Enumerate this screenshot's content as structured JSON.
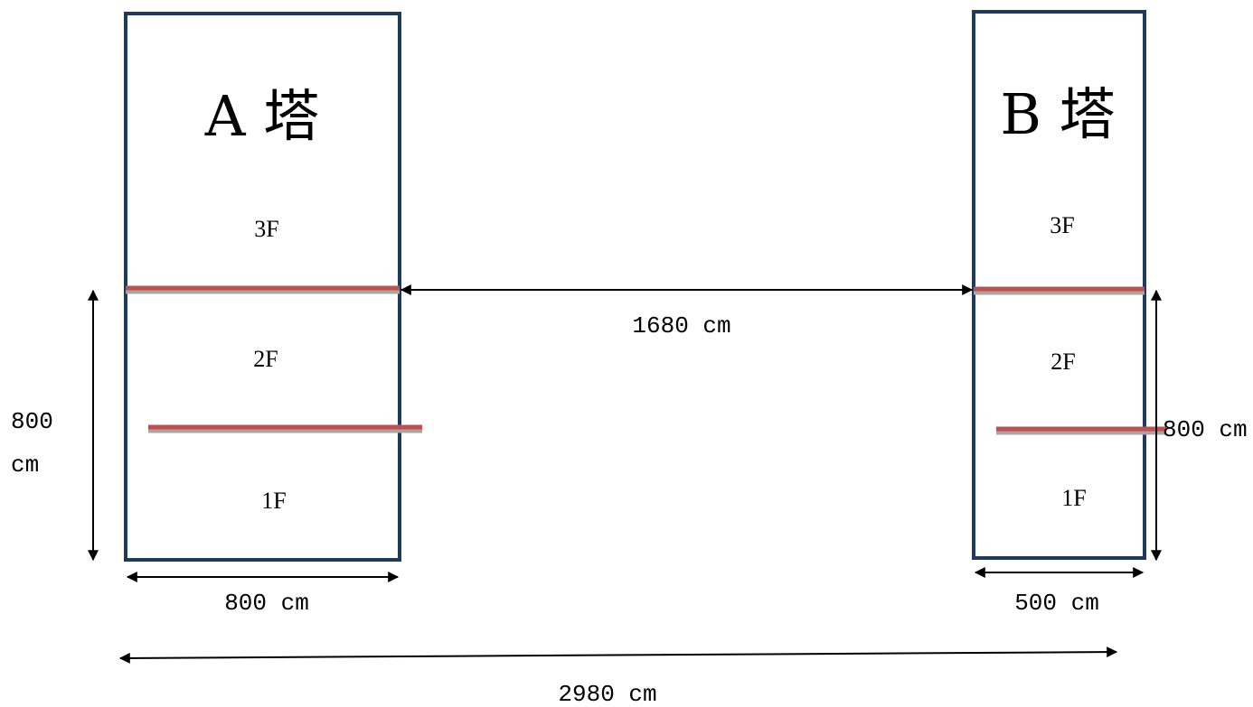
{
  "colors": {
    "tower_border": "#1f3a5f",
    "slab": "#c0504d",
    "slab_shadow": "#a6a6a6",
    "arrow": "#000000"
  },
  "tower_a": {
    "title": "A 塔",
    "floors": [
      "3F",
      "2F",
      "1F"
    ]
  },
  "tower_b": {
    "title": "B 塔",
    "floors": [
      "3F",
      "2F",
      "1F"
    ]
  },
  "dimensions": {
    "gap": "1680 cm",
    "a_height_line1": "800",
    "a_height_line2": "cm",
    "a_width": "800 cm",
    "b_height": "800 cm",
    "b_width": "500 cm",
    "total": "2980 cm"
  }
}
